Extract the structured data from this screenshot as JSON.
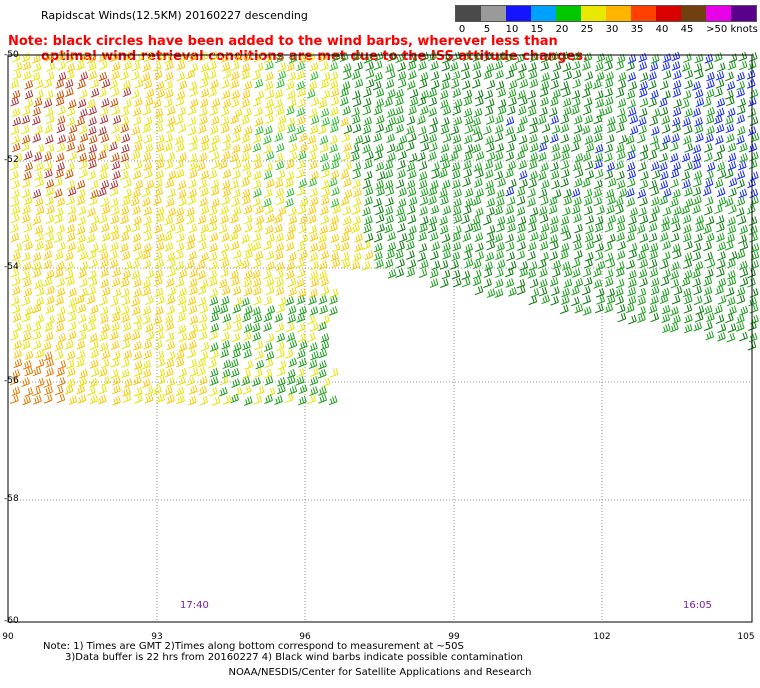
{
  "title": "Rapidscat Winds(12.5KM) 20160227 descending",
  "note": {
    "line1": "Note: black circles have been added to the wind barbs, wherever less than",
    "line2": "optimal wind retrieval conditions are met due to the ISS attitude changes."
  },
  "legend": {
    "labels": [
      "0",
      "5",
      "10",
      "15",
      "20",
      "25",
      "30",
      "35",
      "40",
      "45",
      ">50 knots"
    ],
    "colors": [
      "#4a4a4a",
      "#9a9a9a",
      "#1414ff",
      "#00a0ff",
      "#00c800",
      "#e8e800",
      "#ffb400",
      "#ff4000",
      "#d80000",
      "#704010",
      "#e800e8",
      "#5a008a"
    ]
  },
  "map": {
    "lat_labels": [
      "-50",
      "-52",
      "-54",
      "-56",
      "-58",
      "-60"
    ],
    "lon_labels": [
      "90",
      "93",
      "96",
      "99",
      "102",
      "105"
    ],
    "time_labels": [
      "17:40",
      "16:05"
    ],
    "barb_palette": [
      "#e6e600",
      "#ffc800",
      "#ffaa00",
      "#e87800",
      "#d24f00",
      "#b0303a",
      "#9aa600",
      "#1aa01a",
      "#2fbf2f",
      "#0a7a0a",
      "#1428ff",
      "#000000"
    ]
  },
  "footnote": {
    "line1": "Note: 1) Times are GMT 2)Times along bottom correspond to measurement at ~50S",
    "line2": "3)Data buffer is 22 hrs from 20160227 4) Black wind barbs indicate possible contamination"
  },
  "credit": "NOAA/NESDIS/Center for Satellite Applications and Research"
}
